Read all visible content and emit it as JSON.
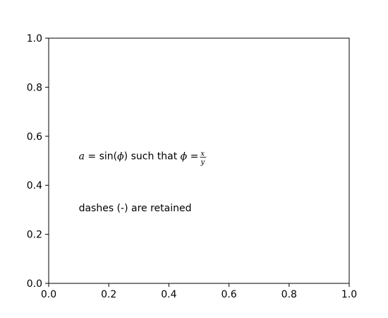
{
  "chart_data": {
    "type": "scatter",
    "title": "",
    "xlabel": "",
    "ylabel": "",
    "xlim": [
      0.0,
      1.0
    ],
    "ylim": [
      0.0,
      1.0
    ],
    "grid": false,
    "x_ticks": [
      "0.0",
      "0.2",
      "0.4",
      "0.6",
      "0.8",
      "1.0"
    ],
    "y_ticks": [
      "0.0",
      "0.2",
      "0.4",
      "0.6",
      "0.8",
      "1.0"
    ],
    "series": [],
    "annotations": [
      {
        "x": 0.1,
        "y": 0.5,
        "text": "a = sin(ϕ) such that ϕ = x/y",
        "parts": {
          "a": "a",
          "eq1": " = sin(",
          "phi1": "ϕ",
          "close": ")",
          "mid": " such that ",
          "phi2": "ϕ",
          "eq2": " = ",
          "num": "x",
          "den": "y"
        }
      },
      {
        "x": 0.1,
        "y": 0.3,
        "text": "dashes (-) are retained"
      }
    ]
  }
}
